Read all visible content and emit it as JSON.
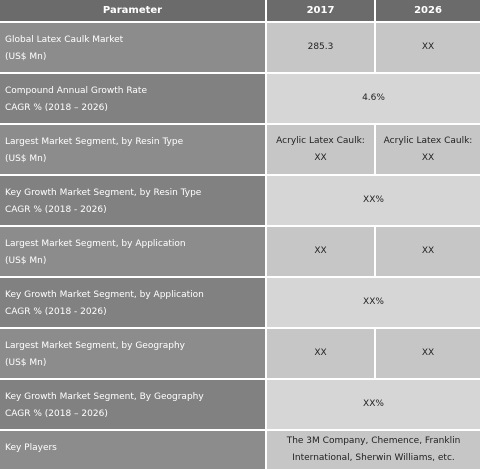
{
  "table": {
    "header": [
      "Parameter",
      "2017",
      "2026"
    ],
    "rows": [
      {
        "parameter": [
          "Global Latex Caulk Market",
          "(US$ Mn)"
        ],
        "values": [
          [
            "285.3"
          ],
          [
            "XX"
          ]
        ]
      },
      {
        "parameter": [
          "Compound Annual Growth Rate",
          "CAGR % (2018 – 2026)"
        ],
        "values": [
          [
            "4.6%"
          ]
        ]
      },
      {
        "parameter": [
          "Largest Market Segment, by Resin Type",
          "(US$ Mn)"
        ],
        "values": [
          [
            "Acrylic Latex Caulk:",
            "XX"
          ],
          [
            "Acrylic Latex Caulk:",
            "XX"
          ]
        ]
      },
      {
        "parameter": [
          "Key Growth Market Segment, by Resin Type",
          "CAGR % (2018 -  2026)"
        ],
        "values": [
          [
            "XX%"
          ]
        ]
      },
      {
        "parameter": [
          "Largest Market Segment, by Application",
          "(US$ Mn)"
        ],
        "values": [
          [
            "XX"
          ],
          [
            "XX"
          ]
        ]
      },
      {
        "parameter": [
          "Key Growth Market Segment, by Application",
          "CAGR % (2018 -  2026)"
        ],
        "values": [
          [
            "XX%"
          ]
        ]
      },
      {
        "parameter": [
          "Largest Market Segment, by Geography",
          "(US$ Mn)"
        ],
        "values": [
          [
            "XX"
          ],
          [
            "XX"
          ]
        ]
      },
      {
        "parameter": [
          "Key Growth Market Segment, By Geography",
          "CAGR % (2018 – 2026)"
        ],
        "values": [
          [
            "XX%"
          ]
        ]
      },
      {
        "parameter": [
          "Key Players"
        ],
        "values": [
          [
            "The 3M Company, Chemence, Franklin",
            "International, Sherwin Williams, etc."
          ]
        ]
      }
    ]
  }
}
